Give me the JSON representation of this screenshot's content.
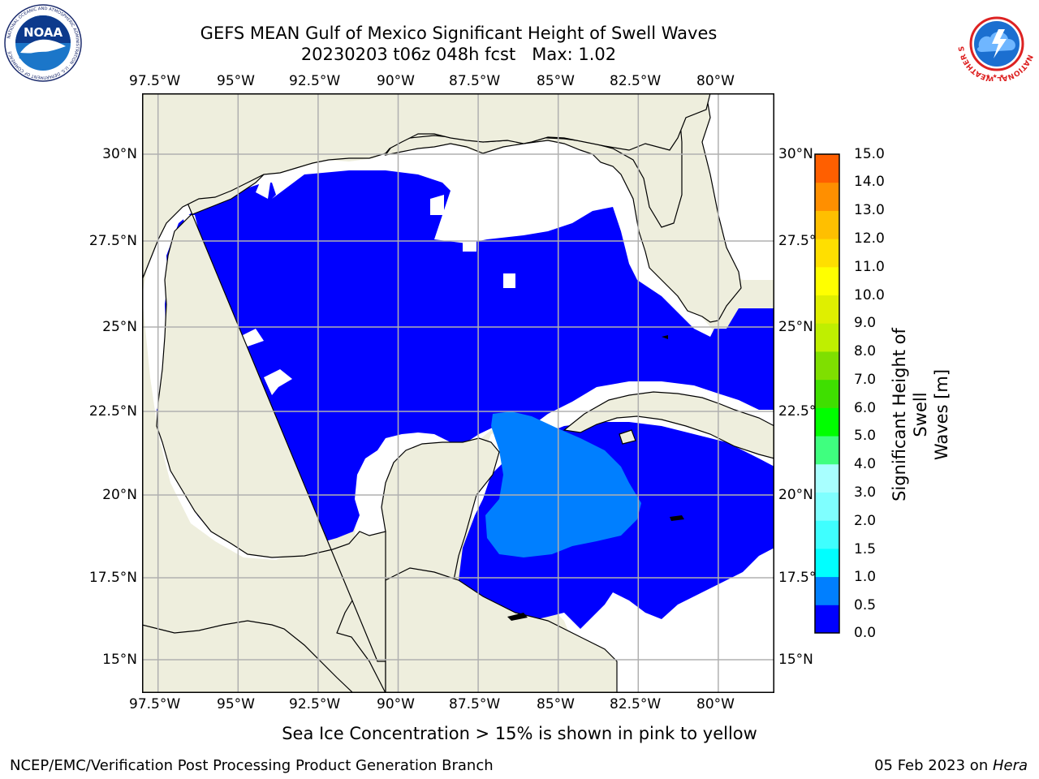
{
  "header": {
    "title_line1": "GEFS MEAN Gulf of Mexico Significant Height of Swell Waves",
    "title_line2": "20230203 t06z 048h fcst   Max: 1.02"
  },
  "logos": {
    "noaa": {
      "text": "NOAA",
      "ring_text": "NATIONAL OCEANIC AND ATMOSPHERIC ADMINISTRATION · U.S. DEPARTMENT OF COMMERCE"
    },
    "nws": {
      "ring_text": "NATIONAL WEATHER SERVICE"
    }
  },
  "map": {
    "lon_labels": [
      "97.5°W",
      "95°W",
      "92.5°W",
      "90°W",
      "87.5°W",
      "85°W",
      "82.5°W",
      "80°W"
    ],
    "lat_labels": [
      "30°N",
      "27.5°N",
      "25°N",
      "22.5°N",
      "20°N",
      "17.5°N",
      "15°N"
    ],
    "extent": {
      "lon_min": -98,
      "lon_max": -78.25,
      "lat_min": 14,
      "lat_max": 31.8
    },
    "colors": {
      "land": "#eeeedd",
      "ocean_no_swell": "#ffffff",
      "swell_0_0.5": "#0000ff",
      "swell_0.5_1.0": "#007fff",
      "swell_1.0_1.5": "#00ffff",
      "grid": "#b0b0b0"
    }
  },
  "colorbar": {
    "label_line1": "Significant Height of Swell",
    "label_line2": "Waves [m]",
    "ticks": [
      "15.0",
      "14.0",
      "13.0",
      "12.0",
      "11.0",
      "10.0",
      "9.0",
      "8.0",
      "7.0",
      "6.0",
      "5.0",
      "4.0",
      "3.0",
      "2.0",
      "1.5",
      "1.0",
      "0.5",
      "0.0"
    ],
    "colors_bottom_to_top": [
      "#0000ff",
      "#007fff",
      "#00ffff",
      "#3fffff",
      "#7fffff",
      "#a8ffff",
      "#3fff7f",
      "#00ff00",
      "#3fdf00",
      "#7fdf00",
      "#bfef00",
      "#dfef00",
      "#ffff00",
      "#ffdf00",
      "#ffbf00",
      "#ff8f00",
      "#ff5f00",
      "#ff3f00",
      "#ff0000"
    ]
  },
  "caption": "Sea Ice Concentration > 15% is shown in pink to yellow",
  "footer": {
    "left": "NCEP/EMC/Verification Post Processing Product Generation Branch",
    "right_date": "05 Feb 2023 on ",
    "right_host": "Hera"
  }
}
